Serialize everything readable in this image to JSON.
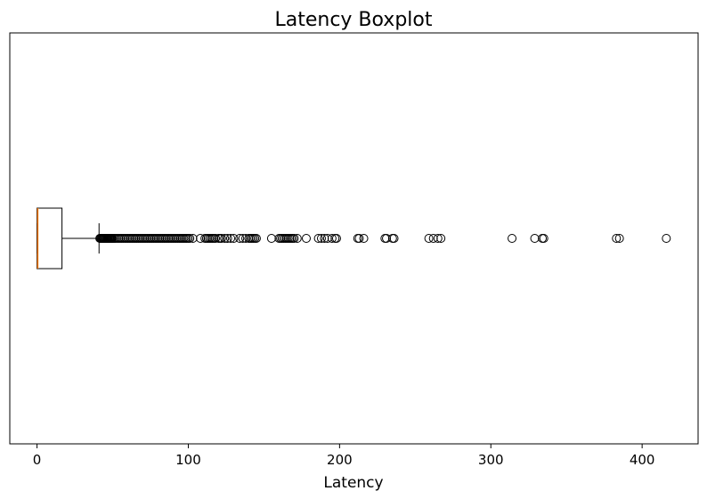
{
  "chart_data": {
    "type": "boxplot",
    "orientation": "horizontal",
    "title": "Latency Boxplot",
    "xlabel": "Latency",
    "ylabel": "",
    "xlim": [
      -18,
      437
    ],
    "xticks": [
      0,
      100,
      200,
      300,
      400
    ],
    "xtick_labels": [
      "0",
      "100",
      "200",
      "300",
      "400"
    ],
    "grid": false,
    "legend": "none",
    "colors": {
      "box": "#000000",
      "median": "#ff7f0e",
      "outlier": "#000000",
      "background": "#ffffff"
    },
    "box": {
      "whisker_low": 0.0,
      "q1": 0.0,
      "median": 0.5,
      "q3": 16.5,
      "whisker_high": 41.0
    },
    "outliers": [
      41.5,
      42,
      42.5,
      43,
      43.5,
      44,
      44.5,
      45,
      45.5,
      46,
      46.5,
      47,
      47.5,
      48,
      48.5,
      49,
      49.5,
      50,
      51,
      52,
      53,
      54,
      55,
      56,
      57,
      58,
      59,
      60,
      61,
      62,
      63,
      64,
      65,
      66,
      67,
      68,
      69,
      70,
      71,
      72,
      73,
      74,
      75,
      76,
      77,
      78,
      79,
      80,
      81,
      82,
      83,
      84,
      85,
      86,
      87,
      88,
      89,
      90,
      91,
      92,
      93,
      94,
      95,
      96,
      97,
      98,
      99,
      100,
      101,
      103,
      108,
      111,
      112,
      113,
      114,
      115,
      116,
      117,
      118,
      120,
      121,
      122,
      124,
      126,
      128,
      130,
      134,
      136,
      138,
      140,
      141,
      142,
      143,
      144,
      145,
      155,
      160,
      161,
      162,
      163,
      164,
      165,
      166,
      167,
      168,
      169,
      170,
      172,
      178,
      186,
      188,
      190,
      192,
      195,
      197,
      198,
      212,
      213,
      216,
      230,
      231,
      235,
      236,
      259,
      262,
      265,
      267,
      314,
      329,
      334,
      335,
      383,
      385,
      416
    ]
  }
}
